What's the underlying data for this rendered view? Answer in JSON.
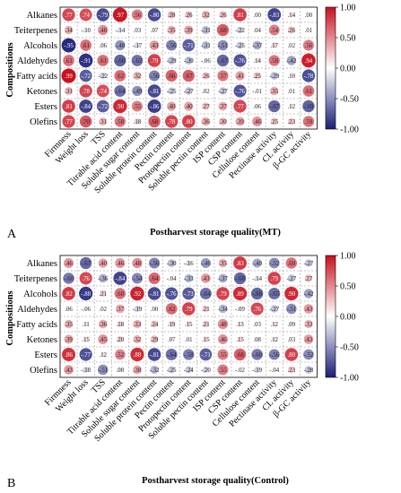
{
  "figure": {
    "colorbar_ticks": [
      "1.00",
      "0.50",
      "0.00",
      "-0.50",
      "-1.00"
    ],
    "colorscale": {
      "neg": "#1a1e78",
      "mid": "#ffffff",
      "pos": "#c8101e"
    }
  },
  "chart_data": [
    {
      "type": "heatmap",
      "panel_label": "A",
      "xlabel": "Postharvest storage quality(MT)",
      "ylabel": "Compositions",
      "zlim": [
        -1,
        1
      ],
      "rows": [
        "Alkanes",
        "Teiterpenes",
        "Alcohols",
        "Aldehydes",
        "Fatty acids",
        "Ketones",
        "Esters",
        "Olefins"
      ],
      "columns": [
        "Firmness",
        "Weight loss",
        "TSS",
        "Titrable acid content",
        "Soluble sugar content",
        "Soluble protein content",
        "Pectin content",
        "Protopectin content",
        "Soluble pectin content",
        "ISP content",
        "CSP content",
        "Cellulose content",
        "Pectinase activity",
        "CL activity",
        "β-GC activity"
      ],
      "values": [
        [
          0.77,
          0.74,
          -0.79,
          0.97,
          0.56,
          -0.8,
          0.28,
          0.26,
          0.32,
          0.26,
          0.81,
          0.0,
          -0.83,
          0.14,
          0.0
        ],
        [
          0.34,
          -0.1,
          0.48,
          -0.14,
          0.03,
          0.07,
          0.35,
          0.39,
          -0.31,
          0.68,
          -0.22,
          0.04,
          0.54,
          0.26,
          0.01
        ],
        [
          -0.95,
          0.61,
          0.06,
          -0.48,
          -0.17,
          0.43,
          -0.56,
          -0.71,
          -0.31,
          -0.51,
          -0.25,
          -0.37,
          0.17,
          0.02,
          0.56
        ],
        [
          0.61,
          -0.91,
          0.61,
          -0.68,
          -0.62,
          0.79,
          -0.29,
          -0.3,
          -0.06,
          -0.67,
          -0.76,
          0.14,
          0.58,
          -0.42,
          0.94
        ],
        [
          0.99,
          -0.72,
          -0.22,
          0.62,
          0.32,
          -0.56,
          0.66,
          0.67,
          0.26,
          0.57,
          0.41,
          0.25,
          -0.29,
          0.1,
          -0.78
        ],
        [
          0.31,
          0.78,
          0.74,
          -0.64,
          -0.49,
          -0.81,
          -0.25,
          -0.27,
          0.02,
          -0.27,
          -0.76,
          -0.01,
          0.35,
          0.01,
          0.61
        ],
        [
          0.81,
          -0.84,
          -0.72,
          0.9,
          0.55,
          -0.86,
          0.4,
          0.4,
          0.27,
          0.37,
          0.77,
          0.06,
          -0.67,
          0.12,
          -0.69
        ],
        [
          0.77,
          0.7,
          0.31,
          0.58,
          0.18,
          0.68,
          0.78,
          0.8,
          0.36,
          0.3,
          0.39,
          0.46,
          0.25,
          0.23,
          0.59
        ]
      ]
    },
    {
      "type": "heatmap",
      "panel_label": "B",
      "xlabel": "Postharvest storage quality(Control)",
      "ylabel": "Compositions",
      "zlim": [
        -1,
        1
      ],
      "rows": [
        "Alkanes",
        "Teiterpenes",
        "Alcohols",
        "Aldehydes",
        "Fatty acids",
        "Ketones",
        "Esters",
        "Olefins"
      ],
      "columns": [
        "Firmness",
        "Weight loss",
        "TSS",
        "Titrable acid content",
        "Soluble sugar content",
        "Soluble protein content",
        "Pectin content",
        "Protopectin content",
        "Soluble pectin content",
        "ISP content",
        "CSP content",
        "Cellulose content",
        "Pectinase activity",
        "CL activity",
        "β-GC activity"
      ],
      "values": [
        [
          0.46,
          -0.67,
          0.4,
          0.46,
          0.48,
          -0.56,
          -0.3,
          -0.16,
          -0.46,
          0.35,
          0.83,
          -0.4,
          -0.52,
          0.6,
          -0.27
        ],
        [
          -0.6,
          0.76,
          -0.36,
          -0.84,
          -0.54,
          0.64,
          -0.04,
          -0.33,
          0.43,
          -0.37,
          -0.68,
          -0.14,
          0.79,
          -0.27,
          0.27
        ],
        [
          0.82,
          -0.88,
          0.21,
          0.6,
          0.92,
          -0.81,
          -0.76,
          -0.73,
          -0.64,
          0.79,
          0.89,
          -0.68,
          -0.65,
          0.9,
          -0.42
        ],
        [
          0.06,
          -0.06,
          0.02,
          0.37,
          -0.19,
          0.0,
          0.62,
          0.79,
          0.21,
          -0.34,
          -0.09,
          0.76,
          -0.27,
          -0.51,
          0.43
        ],
        [
          0.35,
          0.11,
          0.36,
          0.18,
          0.33,
          0.24,
          0.19,
          0.15,
          0.21,
          0.48,
          0.13,
          0.03,
          0.12,
          0.09,
          0.33
        ],
        [
          0.39,
          0.15,
          0.45,
          0.2,
          0.32,
          0.29,
          0.07,
          0.01,
          0.15,
          0.46,
          0.15,
          0.08,
          0.12,
          0.03,
          0.43
        ],
        [
          0.86,
          -0.77,
          0.12,
          0.52,
          0.88,
          -0.81,
          -0.64,
          -0.58,
          -0.71,
          0.55,
          0.68,
          -0.6,
          -0.56,
          0.8,
          -0.52
        ],
        [
          0.43,
          -0.18,
          -0.51,
          0.08,
          0.38,
          -0.32,
          -0.25,
          -0.24,
          -0.2,
          0.55,
          -0.02,
          -0.19,
          -0.04,
          0.23,
          -0.28
        ]
      ]
    }
  ]
}
